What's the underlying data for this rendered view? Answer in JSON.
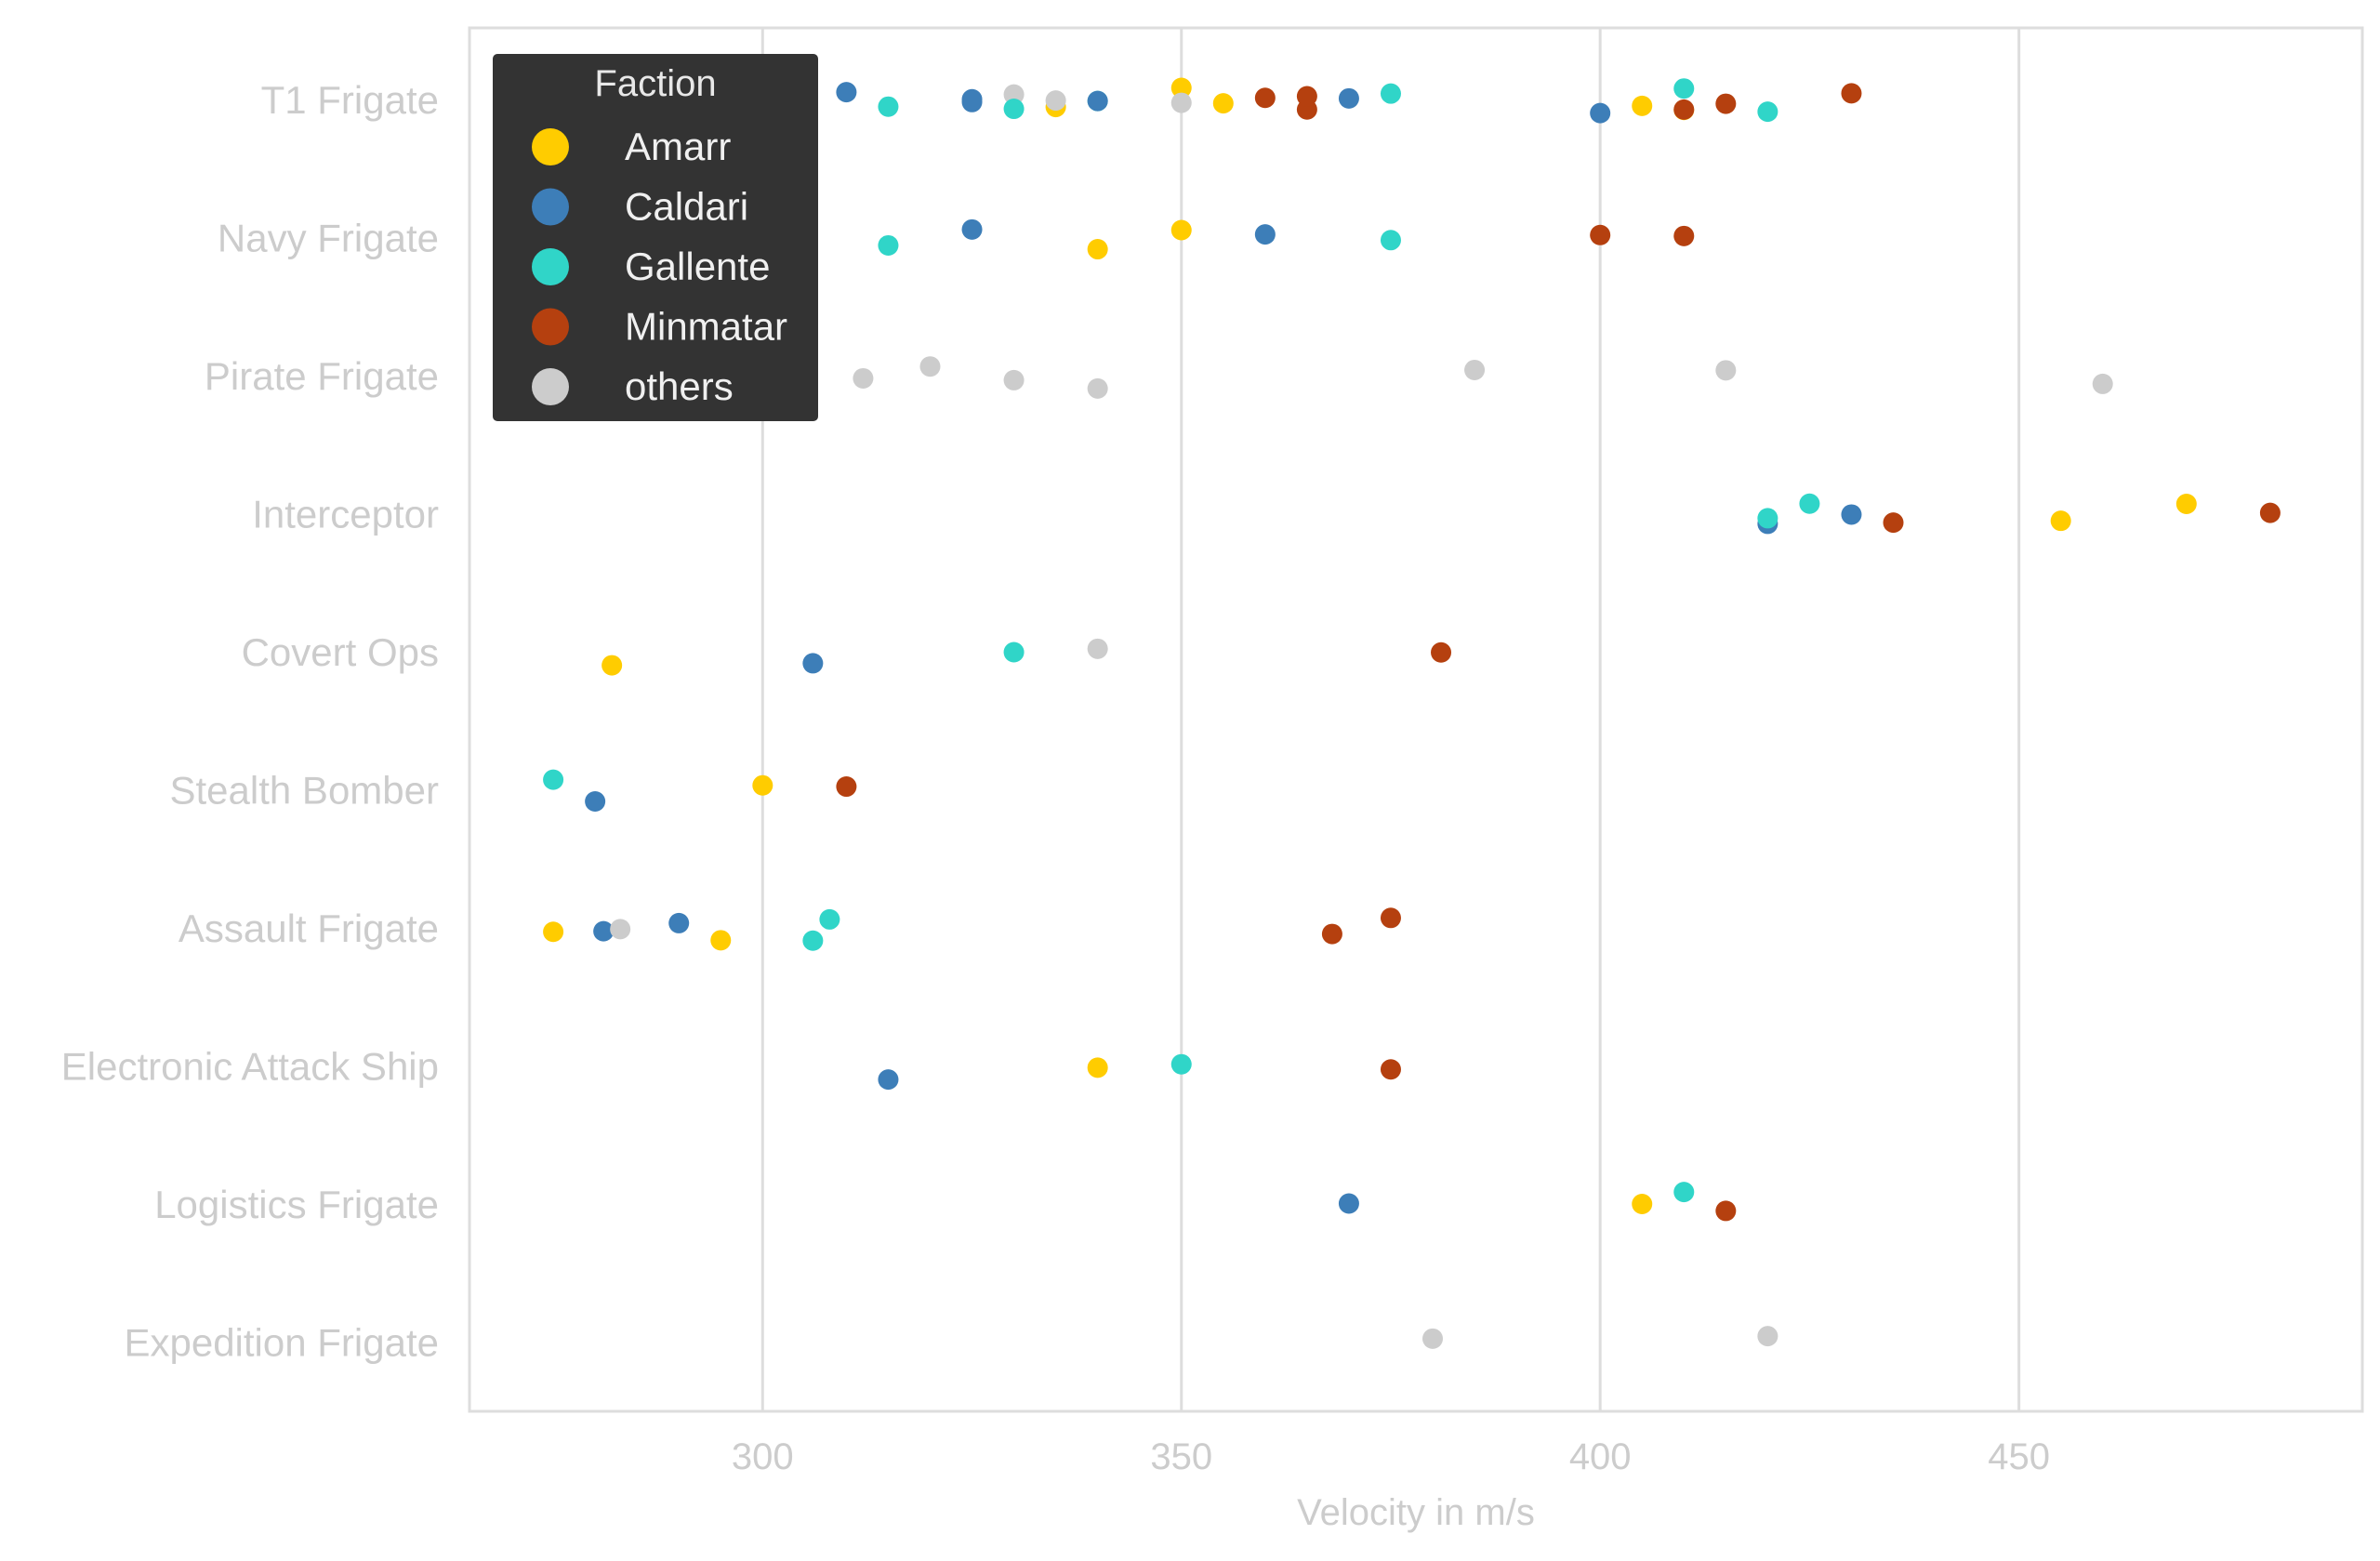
{
  "chart_data": {
    "type": "scatter",
    "subtype": "strip",
    "title": "",
    "xlabel": "Velocity in m/s",
    "ylabel": "",
    "xlim": [
      265,
      491
    ],
    "xticks": [
      300,
      350,
      400,
      450
    ],
    "grid": "x-major",
    "legend": {
      "title": "Faction",
      "position": "top-left",
      "entries": [
        {
          "name": "Amarr",
          "color": "#FFCC00"
        },
        {
          "name": "Caldari",
          "color": "#3D7EB8"
        },
        {
          "name": "Gallente",
          "color": "#30D5C8"
        },
        {
          "name": "Minmatar",
          "color": "#B5400F"
        },
        {
          "name": "others",
          "color": "#CCCCCC"
        }
      ]
    },
    "categories": [
      "T1 Frigate",
      "Navy Frigate",
      "Pirate Frigate",
      "Interceptor",
      "Covert Ops",
      "Stealth Bomber",
      "Assault Frigate",
      "Electronic Attack Ship",
      "Logistics Frigate",
      "Expedition Frigate"
    ],
    "points": [
      {
        "category": "T1 Frigate",
        "faction": "Caldari",
        "x": 310
      },
      {
        "category": "T1 Frigate",
        "faction": "Gallente",
        "x": 315
      },
      {
        "category": "T1 Frigate",
        "faction": "Caldari",
        "x": 325
      },
      {
        "category": "T1 Frigate",
        "faction": "Caldari",
        "x": 325
      },
      {
        "category": "T1 Frigate",
        "faction": "others",
        "x": 330
      },
      {
        "category": "T1 Frigate",
        "faction": "Gallente",
        "x": 330
      },
      {
        "category": "T1 Frigate",
        "faction": "Amarr",
        "x": 335
      },
      {
        "category": "T1 Frigate",
        "faction": "others",
        "x": 335
      },
      {
        "category": "T1 Frigate",
        "faction": "Gallente",
        "x": 340
      },
      {
        "category": "T1 Frigate",
        "faction": "Caldari",
        "x": 340
      },
      {
        "category": "T1 Frigate",
        "faction": "Amarr",
        "x": 350
      },
      {
        "category": "T1 Frigate",
        "faction": "others",
        "x": 350
      },
      {
        "category": "T1 Frigate",
        "faction": "Amarr",
        "x": 355
      },
      {
        "category": "T1 Frigate",
        "faction": "Minmatar",
        "x": 360
      },
      {
        "category": "T1 Frigate",
        "faction": "Minmatar",
        "x": 365
      },
      {
        "category": "T1 Frigate",
        "faction": "Minmatar",
        "x": 365
      },
      {
        "category": "T1 Frigate",
        "faction": "Caldari",
        "x": 370
      },
      {
        "category": "T1 Frigate",
        "faction": "Gallente",
        "x": 375
      },
      {
        "category": "T1 Frigate",
        "faction": "Caldari",
        "x": 400
      },
      {
        "category": "T1 Frigate",
        "faction": "Amarr",
        "x": 405
      },
      {
        "category": "T1 Frigate",
        "faction": "Amarr",
        "x": 410
      },
      {
        "category": "T1 Frigate",
        "faction": "Minmatar",
        "x": 410
      },
      {
        "category": "T1 Frigate",
        "faction": "Gallente",
        "x": 410
      },
      {
        "category": "T1 Frigate",
        "faction": "Minmatar",
        "x": 415
      },
      {
        "category": "T1 Frigate",
        "faction": "Gallente",
        "x": 420
      },
      {
        "category": "T1 Frigate",
        "faction": "Minmatar",
        "x": 430
      },
      {
        "category": "Navy Frigate",
        "faction": "Gallente",
        "x": 315
      },
      {
        "category": "Navy Frigate",
        "faction": "Caldari",
        "x": 325
      },
      {
        "category": "Navy Frigate",
        "faction": "Amarr",
        "x": 340
      },
      {
        "category": "Navy Frigate",
        "faction": "Amarr",
        "x": 350
      },
      {
        "category": "Navy Frigate",
        "faction": "Caldari",
        "x": 360
      },
      {
        "category": "Navy Frigate",
        "faction": "Gallente",
        "x": 375
      },
      {
        "category": "Navy Frigate",
        "faction": "Minmatar",
        "x": 400
      },
      {
        "category": "Navy Frigate",
        "faction": "Minmatar",
        "x": 410
      },
      {
        "category": "Pirate Frigate",
        "faction": "others",
        "x": 312
      },
      {
        "category": "Pirate Frigate",
        "faction": "others",
        "x": 320
      },
      {
        "category": "Pirate Frigate",
        "faction": "others",
        "x": 330
      },
      {
        "category": "Pirate Frigate",
        "faction": "others",
        "x": 340
      },
      {
        "category": "Pirate Frigate",
        "faction": "others",
        "x": 385
      },
      {
        "category": "Pirate Frigate",
        "faction": "others",
        "x": 415
      },
      {
        "category": "Pirate Frigate",
        "faction": "others",
        "x": 460
      },
      {
        "category": "Interceptor",
        "faction": "Caldari",
        "x": 420
      },
      {
        "category": "Interceptor",
        "faction": "Gallente",
        "x": 420
      },
      {
        "category": "Interceptor",
        "faction": "Gallente",
        "x": 425
      },
      {
        "category": "Interceptor",
        "faction": "Caldari",
        "x": 430
      },
      {
        "category": "Interceptor",
        "faction": "Minmatar",
        "x": 435
      },
      {
        "category": "Interceptor",
        "faction": "Amarr",
        "x": 455
      },
      {
        "category": "Interceptor",
        "faction": "Amarr",
        "x": 470
      },
      {
        "category": "Interceptor",
        "faction": "Minmatar",
        "x": 480
      },
      {
        "category": "Covert Ops",
        "faction": "Amarr",
        "x": 282
      },
      {
        "category": "Covert Ops",
        "faction": "Caldari",
        "x": 306
      },
      {
        "category": "Covert Ops",
        "faction": "Gallente",
        "x": 330
      },
      {
        "category": "Covert Ops",
        "faction": "others",
        "x": 340
      },
      {
        "category": "Covert Ops",
        "faction": "Minmatar",
        "x": 381
      },
      {
        "category": "Stealth Bomber",
        "faction": "Gallente",
        "x": 275
      },
      {
        "category": "Stealth Bomber",
        "faction": "Caldari",
        "x": 280
      },
      {
        "category": "Stealth Bomber",
        "faction": "Amarr",
        "x": 300
      },
      {
        "category": "Stealth Bomber",
        "faction": "Minmatar",
        "x": 310
      },
      {
        "category": "Assault Frigate",
        "faction": "Amarr",
        "x": 275
      },
      {
        "category": "Assault Frigate",
        "faction": "Caldari",
        "x": 281
      },
      {
        "category": "Assault Frigate",
        "faction": "others",
        "x": 283
      },
      {
        "category": "Assault Frigate",
        "faction": "Caldari",
        "x": 290
      },
      {
        "category": "Assault Frigate",
        "faction": "Amarr",
        "x": 295
      },
      {
        "category": "Assault Frigate",
        "faction": "Gallente",
        "x": 306
      },
      {
        "category": "Assault Frigate",
        "faction": "Gallente",
        "x": 308
      },
      {
        "category": "Assault Frigate",
        "faction": "Minmatar",
        "x": 368
      },
      {
        "category": "Assault Frigate",
        "faction": "Minmatar",
        "x": 375
      },
      {
        "category": "Electronic Attack Ship",
        "faction": "Caldari",
        "x": 315
      },
      {
        "category": "Electronic Attack Ship",
        "faction": "Amarr",
        "x": 340
      },
      {
        "category": "Electronic Attack Ship",
        "faction": "Gallente",
        "x": 350
      },
      {
        "category": "Electronic Attack Ship",
        "faction": "Minmatar",
        "x": 375
      },
      {
        "category": "Logistics Frigate",
        "faction": "Caldari",
        "x": 370
      },
      {
        "category": "Logistics Frigate",
        "faction": "Amarr",
        "x": 405
      },
      {
        "category": "Logistics Frigate",
        "faction": "Gallente",
        "x": 410
      },
      {
        "category": "Logistics Frigate",
        "faction": "Minmatar",
        "x": 415
      },
      {
        "category": "Expedition Frigate",
        "faction": "others",
        "x": 380
      },
      {
        "category": "Expedition Frigate",
        "faction": "others",
        "x": 420
      }
    ]
  }
}
